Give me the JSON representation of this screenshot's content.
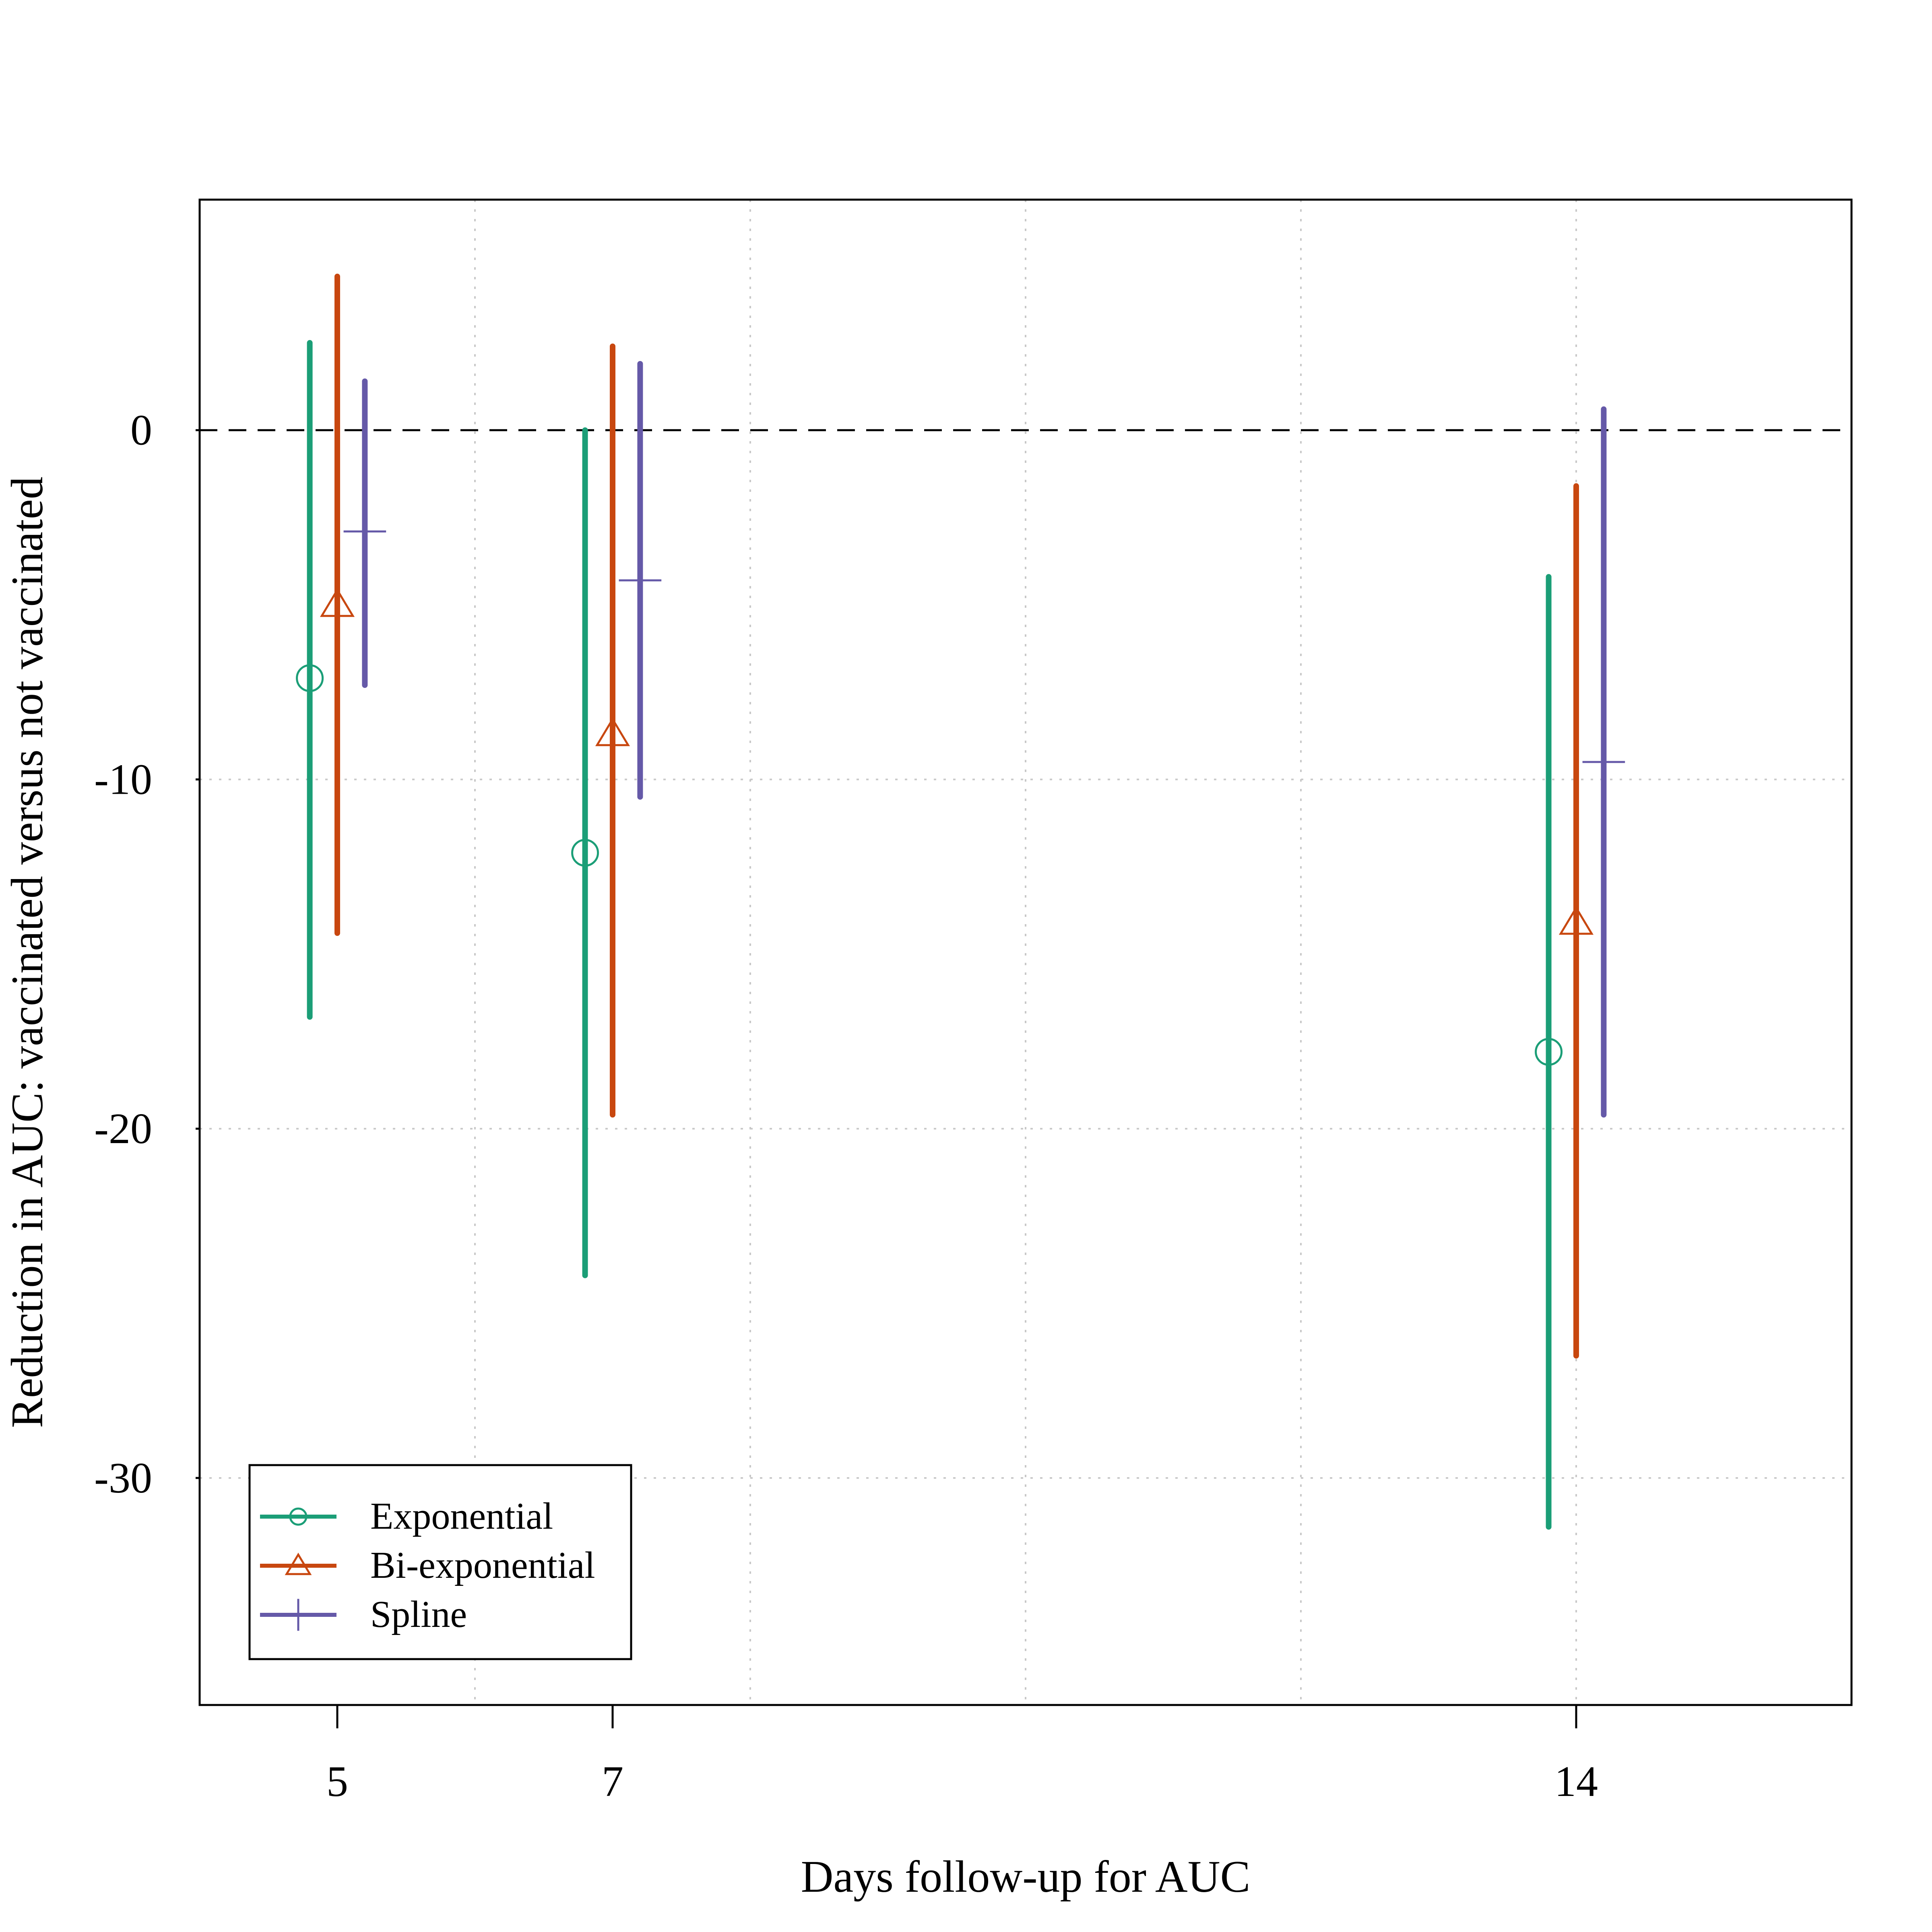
{
  "chart_data": {
    "type": "scatter",
    "subtype": "point-estimate with interval (error bars)",
    "title": "",
    "xlabel": "Days follow-up for AUC",
    "ylabel": "Reduction in AUC: vaccinated versus not vaccinated",
    "xlim": [
      4,
      16
    ],
    "ylim": [
      -36.5,
      6.6
    ],
    "x_ticks": [
      5,
      7,
      14
    ],
    "x_tick_labels": [
      "5",
      "7",
      "14"
    ],
    "y_ticks": [
      0,
      -10,
      -20,
      -30
    ],
    "y_tick_labels": [
      "0",
      "-10",
      "-20",
      "-30"
    ],
    "x_grid": [
      4,
      6,
      8,
      10,
      12,
      14
    ],
    "y_grid": [
      -10,
      -20,
      -30
    ],
    "grid": true,
    "grid_style": "dotted",
    "reference_line": {
      "y": 0,
      "style": "dashed"
    },
    "legend_position": "bottom-left",
    "series": [
      {
        "name": "Exponential",
        "marker": "circle",
        "color": "#1b9e77",
        "x": [
          4.8,
          6.8,
          13.8
        ],
        "estimate": [
          -7.1,
          -12.1,
          -17.8
        ],
        "lower": [
          -16.8,
          -24.2,
          -31.4
        ],
        "upper": [
          2.5,
          0.0,
          -4.2
        ]
      },
      {
        "name": "Bi-exponential",
        "marker": "triangle",
        "color": "#c8470f",
        "x": [
          5,
          7,
          14
        ],
        "estimate": [
          -5.0,
          -8.7,
          -14.1
        ],
        "lower": [
          -14.4,
          -19.6,
          -26.5
        ],
        "upper": [
          4.4,
          2.4,
          -1.6
        ]
      },
      {
        "name": "Spline",
        "marker": "plus",
        "color": "#6559a8",
        "x": [
          5.2,
          7.2,
          14.2
        ],
        "estimate": [
          -2.9,
          -4.3,
          -9.5
        ],
        "lower": [
          -7.3,
          -10.5,
          -19.6
        ],
        "upper": [
          1.4,
          1.9,
          0.6
        ]
      }
    ]
  }
}
